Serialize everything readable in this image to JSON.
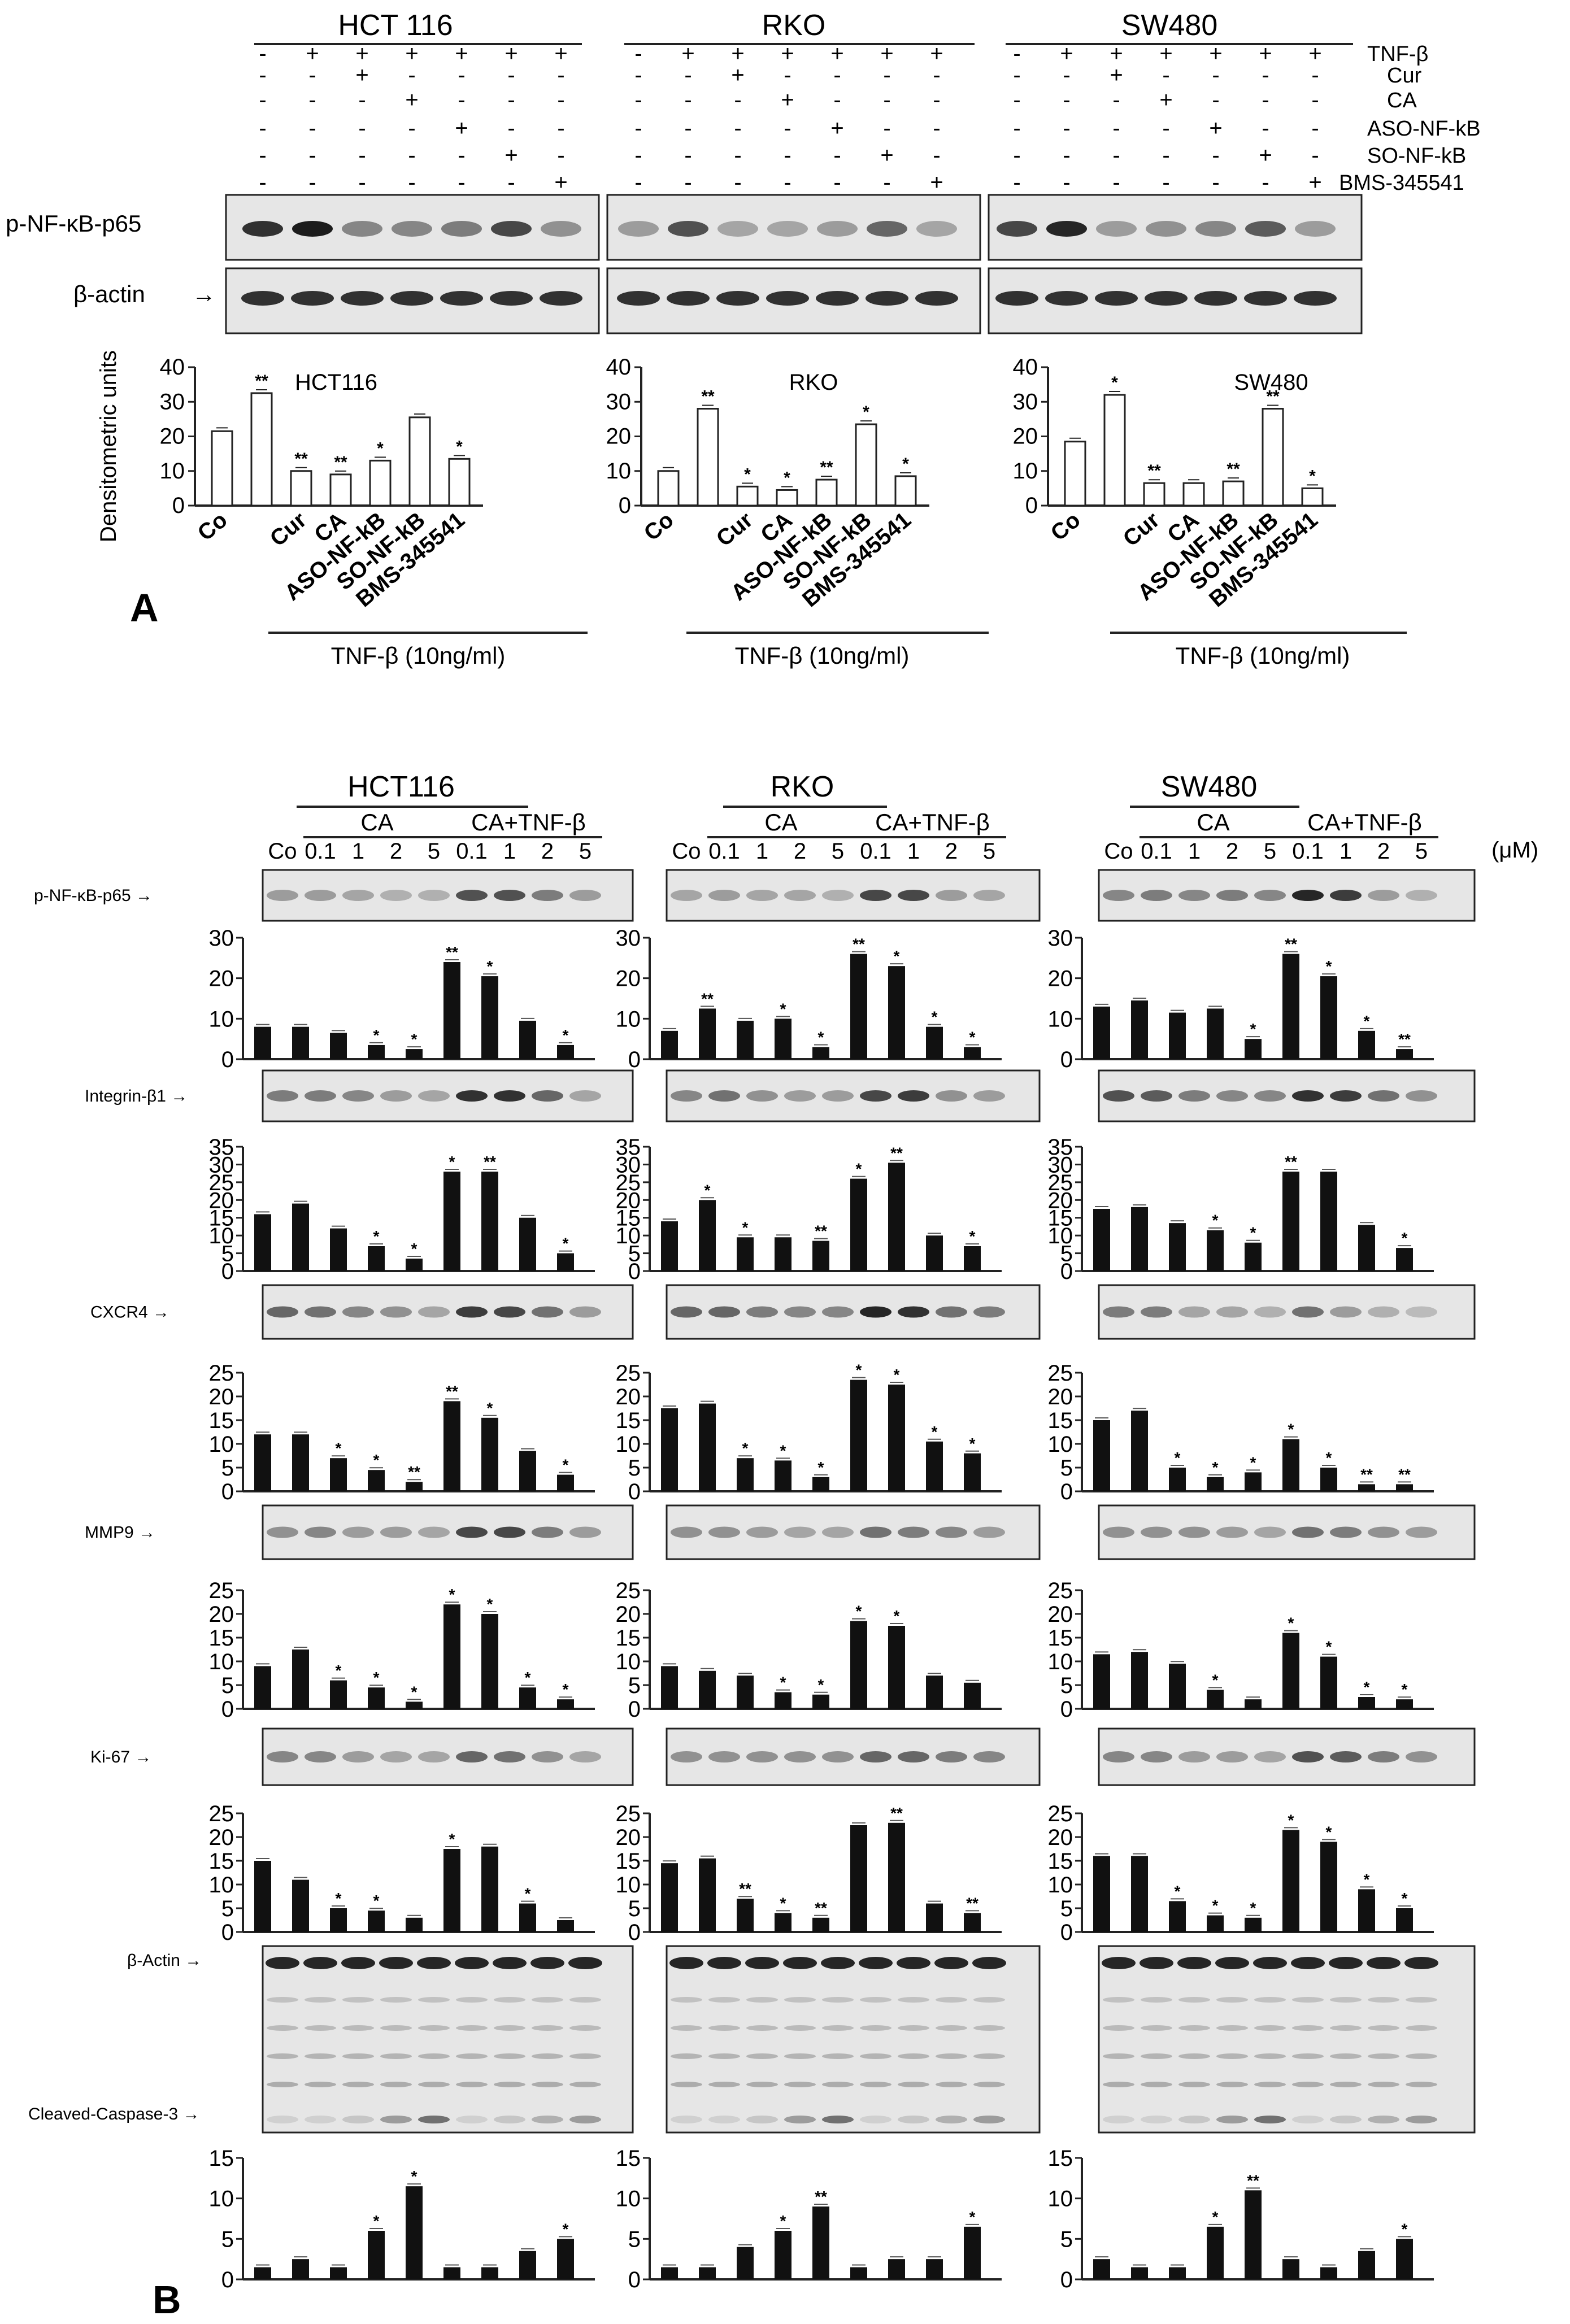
{
  "panel_a": {
    "letter": "A",
    "cell_lines": [
      "HCT 116",
      "RKO",
      "SW480"
    ],
    "treatment_labels": [
      "TNF-β",
      "Cur",
      "CA",
      "ASO-NF-kB",
      "SO-NF-kB",
      "BMS-345541"
    ],
    "sign_matrix": [
      [
        "-",
        "+",
        "+",
        "+",
        "+",
        "+",
        "+"
      ],
      [
        "-",
        "-",
        "+",
        "-",
        "-",
        "-",
        "-"
      ],
      [
        "-",
        "-",
        "-",
        "+",
        "-",
        "-",
        "-"
      ],
      [
        "-",
        "-",
        "-",
        "-",
        "+",
        "-",
        "-"
      ],
      [
        "-",
        "-",
        "-",
        "-",
        "-",
        "+",
        "-"
      ],
      [
        "-",
        "-",
        "-",
        "-",
        "-",
        "-",
        "+"
      ]
    ],
    "blot_labels": [
      "p-NF-κB-p65",
      "β-actin"
    ],
    "ylabel": "Densitometric units",
    "bracket_label": "TNF-β (10ng/ml)"
  },
  "panel_b": {
    "letter": "B",
    "cell_lines": [
      "HCT116",
      "RKO",
      "SW480"
    ],
    "group_labels": [
      "CA",
      "CA+TNF-β"
    ],
    "lane_labels": [
      "Co",
      "0.1",
      "1",
      "2",
      "5",
      "0.1",
      "1",
      "2",
      "5"
    ],
    "unit_label": "(μM)",
    "blot_labels": [
      "p-NF-κB-p65",
      "Integrin-β1",
      "CXCR4",
      "MMP9",
      "Ki-67",
      "β-Actin",
      "Cleaved-Caspase-3"
    ]
  },
  "chart_data": [
    {
      "type": "bar",
      "panel": "A",
      "title": "HCT116",
      "ylabel": "Densitometric units",
      "categories": [
        "Co",
        "",
        "Cur",
        "CA",
        "ASO-NF-kB",
        "SO-NF-kB",
        "BMS-345541"
      ],
      "values": [
        21.5,
        32.5,
        10,
        9,
        13,
        25.5,
        13.5
      ],
      "ylim": [
        0,
        40
      ],
      "significance": [
        "",
        "**",
        "**",
        "**",
        "*",
        "",
        "*"
      ]
    },
    {
      "type": "bar",
      "panel": "A",
      "title": "RKO",
      "ylabel": "",
      "categories": [
        "Co",
        "",
        "Cur",
        "CA",
        "ASO-NF-kB",
        "SO-NF-kB",
        "BMS-345541"
      ],
      "values": [
        10,
        28,
        5.5,
        4.5,
        7.5,
        23.5,
        8.5
      ],
      "ylim": [
        0,
        40
      ],
      "significance": [
        "",
        "**",
        "*",
        "*",
        "**",
        "*",
        "*"
      ]
    },
    {
      "type": "bar",
      "panel": "A",
      "title": "SW480",
      "ylabel": "",
      "categories": [
        "Co",
        "",
        "Cur",
        "CA",
        "ASO-NF-kB",
        "SO-NF-kB",
        "BMS-345541"
      ],
      "values": [
        18.5,
        32,
        6.5,
        6.5,
        7,
        28,
        5
      ],
      "ylim": [
        0,
        40
      ],
      "significance": [
        "",
        "*",
        "**",
        "",
        "**",
        "**",
        "*"
      ]
    },
    {
      "type": "bar",
      "panel": "B",
      "row": "p-NF-κB-p65",
      "cell_line": "HCT116",
      "yticks": [
        0,
        10,
        20,
        30
      ],
      "ylim": [
        0,
        30
      ],
      "values": [
        8,
        8,
        6.5,
        3.5,
        2.5,
        24,
        20.5,
        9.5,
        3.5
      ],
      "significance": [
        "",
        "",
        "",
        "*",
        "*",
        "**",
        "*",
        "",
        "*"
      ]
    },
    {
      "type": "bar",
      "panel": "B",
      "row": "p-NF-κB-p65",
      "cell_line": "RKO",
      "yticks": [
        0,
        10,
        20,
        30
      ],
      "ylim": [
        0,
        30
      ],
      "values": [
        7,
        12.5,
        9.5,
        10,
        3,
        26,
        23,
        8,
        3
      ],
      "significance": [
        "",
        "**",
        "",
        "*",
        "*",
        "**",
        "*",
        "*",
        "*"
      ]
    },
    {
      "type": "bar",
      "panel": "B",
      "row": "p-NF-κB-p65",
      "cell_line": "SW480",
      "yticks": [
        0,
        10,
        20,
        30
      ],
      "ylim": [
        0,
        30
      ],
      "values": [
        13,
        14.5,
        11.5,
        12.5,
        5,
        26,
        20.5,
        7,
        2.5
      ],
      "significance": [
        "",
        "",
        "",
        "",
        "*",
        "**",
        "*",
        "*",
        "**"
      ]
    },
    {
      "type": "bar",
      "panel": "B",
      "row": "Integrin-β1",
      "cell_line": "HCT116",
      "yticks": [
        0,
        5,
        10,
        15,
        20,
        25,
        30,
        35
      ],
      "ylim": [
        0,
        35
      ],
      "values": [
        16,
        19,
        12,
        7,
        3.5,
        28,
        28,
        15,
        5
      ],
      "significance": [
        "",
        "",
        "",
        "*",
        "*",
        "*",
        "**",
        "",
        "*"
      ]
    },
    {
      "type": "bar",
      "panel": "B",
      "row": "Integrin-β1",
      "cell_line": "RKO",
      "yticks": [
        0,
        5,
        10,
        15,
        20,
        25,
        30,
        35
      ],
      "ylim": [
        0,
        35
      ],
      "values": [
        14,
        20,
        9.5,
        9.5,
        8.5,
        26,
        30.5,
        10,
        7
      ],
      "significance": [
        "",
        "*",
        "*",
        "",
        "**",
        "*",
        "**",
        "",
        "*"
      ]
    },
    {
      "type": "bar",
      "panel": "B",
      "row": "Integrin-β1",
      "cell_line": "SW480",
      "yticks": [
        0,
        5,
        10,
        15,
        20,
        25,
        30,
        35
      ],
      "ylim": [
        0,
        35
      ],
      "values": [
        17.5,
        18,
        13.5,
        11.5,
        8,
        28,
        28,
        13,
        6.5
      ],
      "significance": [
        "",
        "",
        "",
        "*",
        "*",
        "**",
        "",
        "",
        "*"
      ]
    },
    {
      "type": "bar",
      "panel": "B",
      "row": "CXCR4",
      "cell_line": "HCT116",
      "yticks": [
        0,
        5,
        10,
        15,
        20,
        25
      ],
      "ylim": [
        0,
        25
      ],
      "values": [
        12,
        12,
        7,
        4.5,
        2,
        19,
        15.5,
        8.5,
        3.5
      ],
      "significance": [
        "",
        "",
        "*",
        "*",
        "**",
        "**",
        "*",
        "",
        "*"
      ]
    },
    {
      "type": "bar",
      "panel": "B",
      "row": "CXCR4",
      "cell_line": "RKO",
      "yticks": [
        0,
        5,
        10,
        15,
        20,
        25
      ],
      "ylim": [
        0,
        25
      ],
      "values": [
        17.5,
        18.5,
        7,
        6.5,
        3,
        23.5,
        22.5,
        10.5,
        8
      ],
      "significance": [
        "",
        "",
        "*",
        "*",
        "*",
        "*",
        "*",
        "*",
        "*"
      ]
    },
    {
      "type": "bar",
      "panel": "B",
      "row": "CXCR4",
      "cell_line": "SW480",
      "yticks": [
        0,
        5,
        10,
        15,
        20,
        25
      ],
      "ylim": [
        0,
        25
      ],
      "values": [
        15,
        17,
        5,
        3,
        4,
        11,
        5,
        1.5,
        1.5
      ],
      "significance": [
        "",
        "",
        "*",
        "*",
        "*",
        "*",
        "*",
        "**",
        "**"
      ]
    },
    {
      "type": "bar",
      "panel": "B",
      "row": "MMP9",
      "cell_line": "HCT116",
      "yticks": [
        0,
        5,
        10,
        15,
        20,
        25
      ],
      "ylim": [
        0,
        25
      ],
      "values": [
        9,
        12.5,
        6,
        4.5,
        1.5,
        22,
        20,
        4.5,
        2
      ],
      "significance": [
        "",
        "",
        "*",
        "*",
        "*",
        "*",
        "*",
        "*",
        "*"
      ]
    },
    {
      "type": "bar",
      "panel": "B",
      "row": "MMP9",
      "cell_line": "RKO",
      "yticks": [
        0,
        5,
        10,
        15,
        20,
        25
      ],
      "ylim": [
        0,
        25
      ],
      "values": [
        9,
        8,
        7,
        3.5,
        3,
        18.5,
        17.5,
        7,
        5.5
      ],
      "significance": [
        "",
        "",
        "",
        "*",
        "*",
        "*",
        "*",
        "",
        ""
      ]
    },
    {
      "type": "bar",
      "panel": "B",
      "row": "MMP9",
      "cell_line": "SW480",
      "yticks": [
        0,
        5,
        10,
        15,
        20,
        25
      ],
      "ylim": [
        0,
        25
      ],
      "values": [
        11.5,
        12,
        9.5,
        4,
        2,
        16,
        11,
        2.5,
        2
      ],
      "significance": [
        "",
        "",
        "",
        "*",
        "",
        "*",
        "*",
        "*",
        "*"
      ]
    },
    {
      "type": "bar",
      "panel": "B",
      "row": "Ki-67",
      "cell_line": "HCT116",
      "yticks": [
        0,
        5,
        10,
        15,
        20,
        25
      ],
      "ylim": [
        0,
        25
      ],
      "values": [
        15,
        11,
        5,
        4.5,
        3,
        17.5,
        18,
        6,
        2.5
      ],
      "significance": [
        "",
        "",
        "*",
        "*",
        "",
        "*",
        "",
        "*",
        ""
      ]
    },
    {
      "type": "bar",
      "panel": "B",
      "row": "Ki-67",
      "cell_line": "RKO",
      "yticks": [
        0,
        5,
        10,
        15,
        20,
        25
      ],
      "ylim": [
        0,
        25
      ],
      "values": [
        14.5,
        15.5,
        7,
        4,
        3,
        22.5,
        23,
        6,
        4
      ],
      "significance": [
        "",
        "",
        "**",
        "*",
        "**",
        "",
        "**",
        "",
        "**"
      ]
    },
    {
      "type": "bar",
      "panel": "B",
      "row": "Ki-67",
      "cell_line": "SW480",
      "yticks": [
        0,
        5,
        10,
        15,
        20,
        25
      ],
      "ylim": [
        0,
        25
      ],
      "values": [
        16,
        16,
        6.5,
        3.5,
        3,
        21.5,
        19,
        9,
        5
      ],
      "significance": [
        "",
        "",
        "*",
        "*",
        "*",
        "*",
        "*",
        "*",
        "*"
      ]
    },
    {
      "type": "bar",
      "panel": "B",
      "row": "Cleaved-Caspase-3",
      "cell_line": "HCT116",
      "yticks": [
        0,
        5,
        10,
        15
      ],
      "ylim": [
        0,
        15
      ],
      "values": [
        1.5,
        2.5,
        1.5,
        6,
        11.5,
        1.5,
        1.5,
        3.5,
        5
      ],
      "significance": [
        "",
        "",
        "",
        "*",
        "*",
        "",
        "",
        "",
        "*"
      ]
    },
    {
      "type": "bar",
      "panel": "B",
      "row": "Cleaved-Caspase-3",
      "cell_line": "RKO",
      "yticks": [
        0,
        5,
        10,
        15
      ],
      "ylim": [
        0,
        15
      ],
      "values": [
        1.5,
        1.5,
        4,
        6,
        9,
        1.5,
        2.5,
        2.5,
        6.5
      ],
      "significance": [
        "",
        "",
        "",
        "*",
        "**",
        "",
        "",
        "",
        "*"
      ]
    },
    {
      "type": "bar",
      "panel": "B",
      "row": "Cleaved-Caspase-3",
      "cell_line": "SW480",
      "yticks": [
        0,
        5,
        10,
        15
      ],
      "ylim": [
        0,
        15
      ],
      "values": [
        2.5,
        1.5,
        1.5,
        6.5,
        11,
        2.5,
        1.5,
        3.5,
        5
      ],
      "significance": [
        "",
        "",
        "",
        "*",
        "**",
        "",
        "",
        "",
        "*"
      ]
    }
  ]
}
